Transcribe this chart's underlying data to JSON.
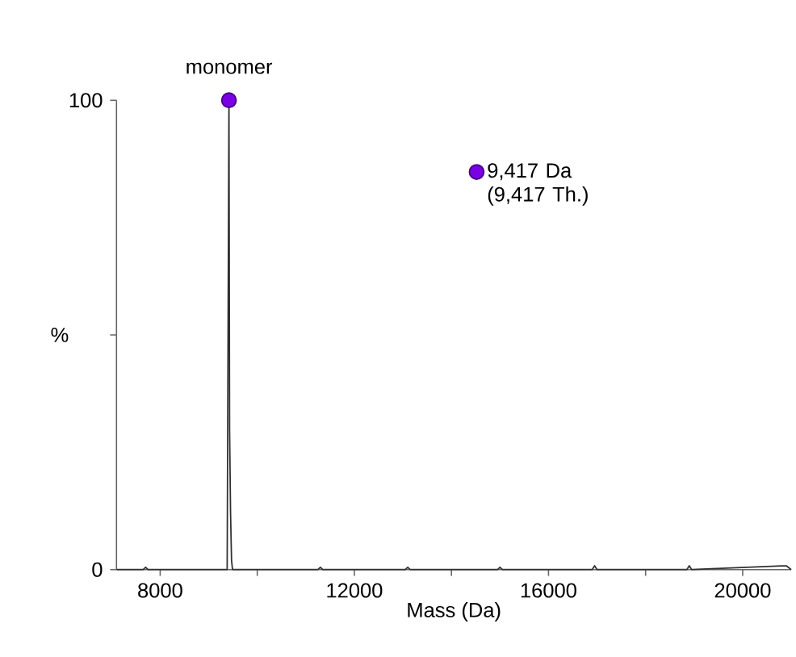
{
  "chart_data": {
    "type": "line",
    "xlabel": "Mass (Da)",
    "ylabel": "%",
    "xlim": [
      7100,
      21000
    ],
    "ylim": [
      0,
      100
    ],
    "xticks": [
      8000,
      {
        "value": 10000,
        "label": null
      },
      12000,
      {
        "value": 14000,
        "label": null
      },
      16000,
      {
        "value": 18000,
        "label": null
      },
      20000
    ],
    "yticks": [
      0,
      {
        "value": 50,
        "label": null
      },
      100
    ],
    "legend": "top right",
    "grid": false,
    "annotations": [
      {
        "text": "monomer",
        "x": 9417,
        "y": 100
      }
    ],
    "series": [
      {
        "color": "#303030",
        "x": [
          7100,
          7650,
          7700,
          7750,
          9380,
          9417,
          9430,
          9450,
          9470,
          9490,
          11250,
          11300,
          11350,
          13050,
          13100,
          13150,
          14950,
          15000,
          15050,
          16900,
          16950,
          17000,
          18850,
          18900,
          18950,
          20800,
          20900,
          21000
        ],
        "values": [
          0,
          0,
          0.5,
          0,
          0,
          100,
          30,
          12,
          2,
          0,
          0,
          0.5,
          0,
          0,
          0.5,
          0,
          0,
          0.5,
          0,
          0,
          0.8,
          0,
          0,
          0.8,
          0,
          0.8,
          0.8,
          0
        ]
      },
      {
        "type": "scatter",
        "name": "9,417 Da (9,417 Th.)",
        "color": "#7a00e6",
        "x": [
          9417
        ],
        "values": [
          100
        ]
      }
    ]
  }
}
